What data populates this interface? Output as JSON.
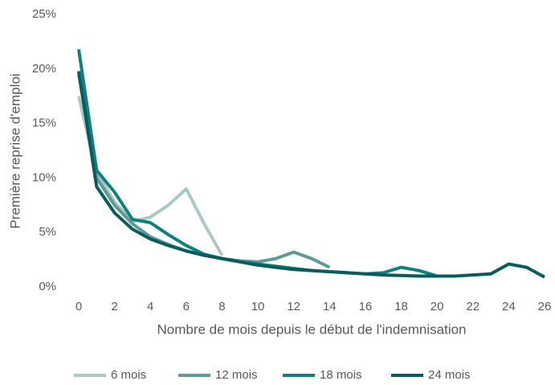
{
  "chart_data": {
    "type": "line",
    "xlabel": "Nombre de mois depuis le début de l'indemnisation",
    "ylabel": "Première reprise d'emploi",
    "x": [
      0,
      1,
      2,
      3,
      4,
      5,
      6,
      7,
      8,
      9,
      10,
      11,
      12,
      13,
      14,
      15,
      16,
      17,
      18,
      19,
      20,
      21,
      22,
      23,
      24,
      25,
      26
    ],
    "xlim": [
      0,
      26
    ],
    "xticks": [
      0,
      2,
      4,
      6,
      8,
      10,
      12,
      14,
      16,
      18,
      20,
      22,
      24,
      26
    ],
    "ylim": [
      0,
      25
    ],
    "yticks": [
      {
        "value": 0,
        "label": "0%"
      },
      {
        "value": 5,
        "label": "5%"
      },
      {
        "value": 10,
        "label": "10%"
      },
      {
        "value": 15,
        "label": "15%"
      },
      {
        "value": 20,
        "label": "20%"
      },
      {
        "value": 25,
        "label": "25%"
      }
    ],
    "grid": false,
    "legend": "bottom",
    "series": [
      {
        "name": "6 mois",
        "color": "#a9c9c6",
        "values": [
          17.5,
          10.5,
          7.8,
          6.0,
          6.4,
          7.5,
          9.0,
          5.8,
          2.9,
          null,
          null,
          null,
          null,
          null,
          null,
          null,
          null,
          null,
          null,
          null,
          null,
          null,
          null,
          null,
          null,
          null,
          null
        ]
      },
      {
        "name": "12 mois",
        "color": "#5f9a98",
        "values": [
          19.5,
          10.0,
          7.5,
          5.8,
          4.6,
          3.9,
          3.3,
          2.9,
          2.6,
          2.4,
          2.3,
          2.6,
          3.2,
          2.6,
          1.8,
          null,
          null,
          null,
          null,
          null,
          null,
          null,
          null,
          null,
          null,
          null,
          null
        ]
      },
      {
        "name": "18 mois",
        "color": "#0f8080",
        "values": [
          21.8,
          10.7,
          8.7,
          6.2,
          5.9,
          4.8,
          3.8,
          3.0,
          2.6,
          2.3,
          2.1,
          1.9,
          1.7,
          1.5,
          1.4,
          1.3,
          1.2,
          1.3,
          1.8,
          1.5,
          1.0,
          null,
          null,
          null,
          null,
          null,
          null
        ]
      },
      {
        "name": "24 mois",
        "color": "#0a5c5c",
        "values": [
          19.8,
          9.2,
          6.8,
          5.3,
          4.4,
          3.8,
          3.3,
          2.9,
          2.6,
          2.3,
          2.0,
          1.8,
          1.6,
          1.5,
          1.4,
          1.3,
          1.2,
          1.1,
          1.05,
          1.0,
          1.0,
          1.0,
          1.1,
          1.2,
          2.1,
          1.8,
          0.9
        ]
      }
    ]
  }
}
